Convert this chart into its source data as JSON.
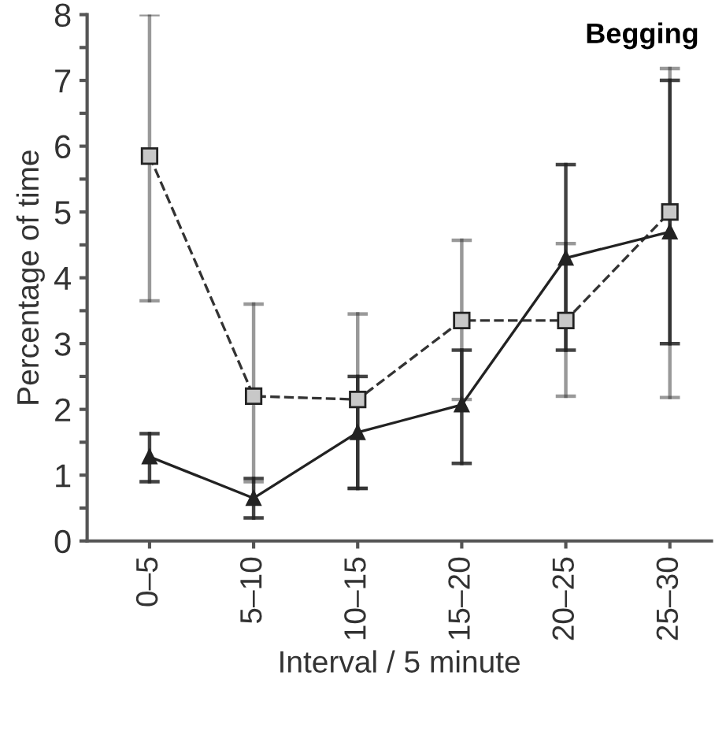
{
  "chart_data": {
    "type": "line",
    "title": "Begging",
    "xlabel": "Interval / 5 minute",
    "ylabel": "Percentage of time",
    "categories": [
      "0–5",
      "5–10",
      "10–15",
      "15–20",
      "20–25",
      "25–30"
    ],
    "series": [
      {
        "color": "#333333",
        "values": [
          5.85,
          2.2,
          2.15,
          3.35,
          3.35,
          5.0
        ],
        "errors": [
          [
            3.65,
            8.0
          ],
          [
            0.9,
            3.6
          ],
          [
            0.8,
            3.45
          ],
          [
            2.15,
            4.57
          ],
          [
            2.2,
            4.52
          ],
          [
            2.18,
            7.18
          ]
        ],
        "marker": "square",
        "line_style": "dashed"
      },
      {
        "color": "#222222",
        "values": [
          1.28,
          0.65,
          1.65,
          2.07,
          4.3,
          4.7
        ],
        "errors": [
          [
            0.9,
            1.63
          ],
          [
            0.35,
            0.95
          ],
          [
            0.8,
            2.5
          ],
          [
            1.18,
            2.9
          ],
          [
            2.9,
            5.72
          ],
          [
            3.0,
            7.0
          ]
        ],
        "marker": "triangle",
        "line_style": "solid"
      }
    ],
    "ylim": [
      0,
      8
    ],
    "yticks": [
      0,
      {
        "value": 0.5,
        "label": null
      },
      1,
      {
        "value": 1.5,
        "label": null
      },
      2,
      {
        "value": 2.5,
        "label": null
      },
      3,
      {
        "value": 3.5,
        "label": null
      },
      4,
      {
        "value": 4.5,
        "label": null
      },
      5,
      {
        "value": 5.5,
        "label": null
      },
      6,
      {
        "value": 6.5,
        "label": null
      },
      7,
      {
        "value": 7.5,
        "label": null
      },
      8
    ],
    "grid": false,
    "legend": false
  }
}
